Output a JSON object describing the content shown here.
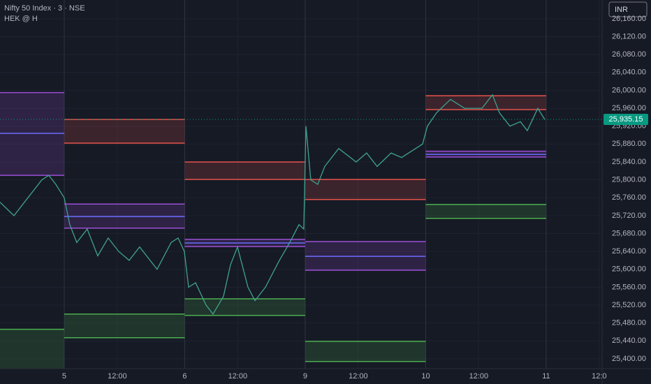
{
  "chart_data": {
    "type": "line",
    "title": "Nifty 50 Index · 3 · NSE",
    "subtitle": "HEK @ H",
    "currency": "INR",
    "last_price": 25935.15,
    "last_price_label": "25,935.15",
    "last_price_color": "#089981",
    "series": [
      {
        "color": "#3fa290",
        "x": [
          0.467,
          0.583,
          0.699,
          0.814,
          0.872,
          0.93,
          1.0,
          1.046,
          1.104,
          1.191,
          1.278,
          1.365,
          1.452,
          1.539,
          1.626,
          1.771,
          1.887,
          1.945,
          1.997,
          2.032,
          2.09,
          2.177,
          2.235,
          2.322,
          2.38,
          2.438,
          2.525,
          2.583,
          2.67,
          2.786,
          2.872,
          2.948,
          2.988,
          3.006,
          3.046,
          3.104,
          3.162,
          3.278,
          3.423,
          3.51,
          3.597,
          3.713,
          3.8,
          3.916,
          3.974,
          4.014,
          4.09,
          4.206,
          4.322,
          4.467,
          4.554,
          4.612,
          4.699,
          4.786,
          4.843,
          4.93,
          4.988
        ],
        "values": [
          25750,
          25720,
          25760,
          25800,
          25810,
          25790,
          25760,
          25700,
          25660,
          25690,
          25630,
          25670,
          25640,
          25620,
          25650,
          25600,
          25660,
          25670,
          25640,
          25560,
          25570,
          25520,
          25500,
          25540,
          25610,
          25650,
          25560,
          25530,
          25560,
          25620,
          25660,
          25700,
          25690,
          25920,
          25800,
          25790,
          25830,
          25870,
          25840,
          25860,
          25830,
          25860,
          25850,
          25870,
          25880,
          25920,
          25950,
          25980,
          25960,
          25960,
          25990,
          25950,
          25920,
          25930,
          25910,
          25960,
          25935
        ]
      }
    ],
    "zones": [
      {
        "x": [
          0.467,
          1
        ],
        "upper": null,
        "pivot": [
          25995,
          25904,
          25810
        ],
        "lower": [
          25466,
          null
        ]
      },
      {
        "x": [
          1,
          2
        ],
        "upper": [
          25935,
          25882
        ],
        "pivot": [
          25746,
          25718,
          25692
        ],
        "lower": [
          25500,
          25447
        ]
      },
      {
        "x": [
          2,
          3
        ],
        "upper": [
          25840,
          25801
        ],
        "pivot": [
          25667,
          25659,
          25651
        ],
        "lower": [
          25534,
          25497
        ]
      },
      {
        "x": [
          3,
          4
        ],
        "upper": [
          25801,
          25756
        ],
        "pivot": [
          25662,
          25629,
          25598
        ],
        "lower": [
          25439,
          25394
        ]
      },
      {
        "x": [
          4,
          5
        ],
        "upper": [
          25988,
          25957
        ],
        "pivot": [
          25864,
          25857,
          25851
        ],
        "lower": [
          25745,
          25714
        ]
      }
    ],
    "upper_color": "#e5534b",
    "pivot_color": "#9c4fd6",
    "pivot_mid_color": "#6b6cff",
    "lower_color": "#4caf50",
    "xlim": [
      0.467,
      5.464
    ],
    "xticks": [
      {
        "value": 1,
        "label": "5"
      },
      {
        "value": 1.44,
        "label": "12:00"
      },
      {
        "value": 2,
        "label": "6"
      },
      {
        "value": 2.44,
        "label": "12:00"
      },
      {
        "value": 3,
        "label": "9"
      },
      {
        "value": 3.44,
        "label": "12:00"
      },
      {
        "value": 4,
        "label": "10"
      },
      {
        "value": 4.44,
        "label": "12:00"
      },
      {
        "value": 5,
        "label": "11"
      },
      {
        "value": 5.44,
        "label": "12:0"
      }
    ],
    "ylim": [
      25378,
      26202
    ],
    "yticks": [
      {
        "value": 25400,
        "label": "25,400.00"
      },
      {
        "value": 25440,
        "label": "25,440.00"
      },
      {
        "value": 25480,
        "label": "25,480.00"
      },
      {
        "value": 25520,
        "label": "25,520.00"
      },
      {
        "value": 25560,
        "label": "25,560.00"
      },
      {
        "value": 25600,
        "label": "25,600.00"
      },
      {
        "value": 25640,
        "label": "25,640.00"
      },
      {
        "value": 25680,
        "label": "25,680.00"
      },
      {
        "value": 25720,
        "label": "25,720.00"
      },
      {
        "value": 25760,
        "label": "25,760.00"
      },
      {
        "value": 25800,
        "label": "25,800.00"
      },
      {
        "value": 25840,
        "label": "25,840.00"
      },
      {
        "value": 25880,
        "label": "25,880.00"
      },
      {
        "value": 25920,
        "label": "25,920.00"
      },
      {
        "value": 25960,
        "label": "25,960.00"
      },
      {
        "value": 26000,
        "label": "26,000.00"
      },
      {
        "value": 26040,
        "label": "26,040.00"
      },
      {
        "value": 26080,
        "label": "26,080.00"
      },
      {
        "value": 26120,
        "label": "26,120.00"
      },
      {
        "value": 26160,
        "label": "26,160.00"
      }
    ],
    "grid": true
  }
}
